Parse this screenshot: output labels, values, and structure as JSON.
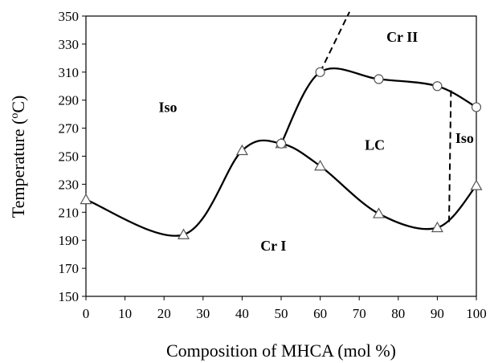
{
  "chart_data": {
    "type": "line",
    "xlabel": "Composition of MHCA (mol %)",
    "ylabel": "Temperature (",
    "ylabel_sup": "o",
    "ylabel_unit": "C)",
    "xlim": [
      0,
      100
    ],
    "ylim": [
      150,
      350
    ],
    "xticks": [
      0,
      10,
      20,
      30,
      40,
      50,
      60,
      70,
      80,
      90,
      100
    ],
    "yticks": [
      150,
      170,
      190,
      210,
      230,
      250,
      270,
      290,
      310,
      330,
      350
    ],
    "grid": false,
    "legend": "none",
    "series": [
      {
        "marker": "triangle",
        "style": "solid",
        "points": [
          {
            "x": 0,
            "y": 219
          },
          {
            "x": 25,
            "y": 194
          },
          {
            "x": 40,
            "y": 254
          },
          {
            "x": 50,
            "y": 259
          },
          {
            "x": 60,
            "y": 243
          },
          {
            "x": 75,
            "y": 209
          },
          {
            "x": 90,
            "y": 199
          },
          {
            "x": 100,
            "y": 229
          }
        ]
      },
      {
        "marker": "circle",
        "style": "solid",
        "points": [
          {
            "x": 50,
            "y": 259
          },
          {
            "x": 60,
            "y": 310
          },
          {
            "x": 75,
            "y": 305
          },
          {
            "x": 90,
            "y": 300
          },
          {
            "x": 100,
            "y": 285
          }
        ]
      },
      {
        "marker": "none",
        "style": "dashed",
        "points": [
          {
            "x": 60,
            "y": 310
          },
          {
            "x": 67.5,
            "y": 353
          }
        ]
      },
      {
        "marker": "none",
        "style": "dashed",
        "points": [
          {
            "x": 93.5,
            "y": 297
          },
          {
            "x": 93,
            "y": 202
          }
        ]
      }
    ],
    "annotations": [
      {
        "text": "Iso",
        "x": 21,
        "y": 285
      },
      {
        "text": "Cr II",
        "x": 81,
        "y": 335
      },
      {
        "text": "LC",
        "x": 74,
        "y": 258
      },
      {
        "text": "Iso",
        "x": 97,
        "y": 263
      },
      {
        "text": "Cr I",
        "x": 48,
        "y": 186
      }
    ]
  }
}
